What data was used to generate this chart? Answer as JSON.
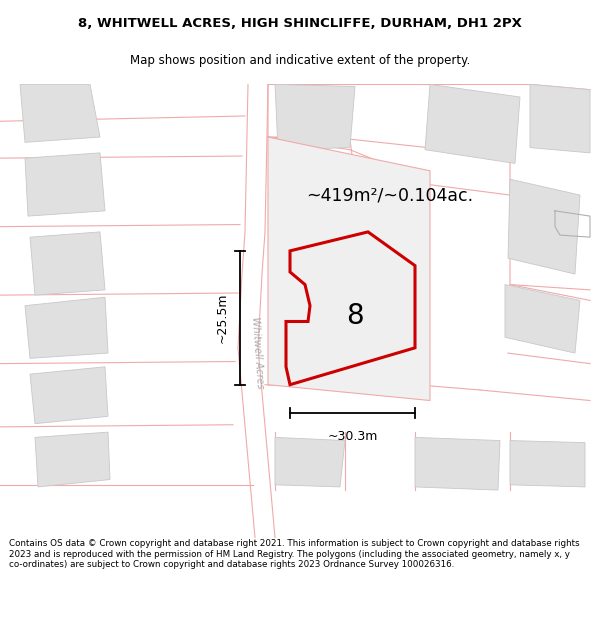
{
  "title_line1": "8, WHITWELL ACRES, HIGH SHINCLIFFE, DURHAM, DH1 2PX",
  "title_line2": "Map shows position and indicative extent of the property.",
  "area_label": "~419m²/~0.104ac.",
  "plot_number": "8",
  "street_name": "Whitwell Acres",
  "dim_vertical": "~25.5m",
  "dim_horizontal": "~30.3m",
  "footer_text": "Contains OS data © Crown copyright and database right 2021. This information is subject to Crown copyright and database rights 2023 and is reproduced with the permission of HM Land Registry. The polygons (including the associated geometry, namely x, y co-ordinates) are subject to Crown copyright and database rights 2023 Ordnance Survey 100026316.",
  "map_bg": "#ffffff",
  "plot_fill": "#efefef",
  "plot_edge": "#cc0000",
  "road_color": "#f5c8c8",
  "building_fill": "#e0e0e0",
  "building_edge": "#c8c8c8",
  "line_color": "#f0aaaa"
}
